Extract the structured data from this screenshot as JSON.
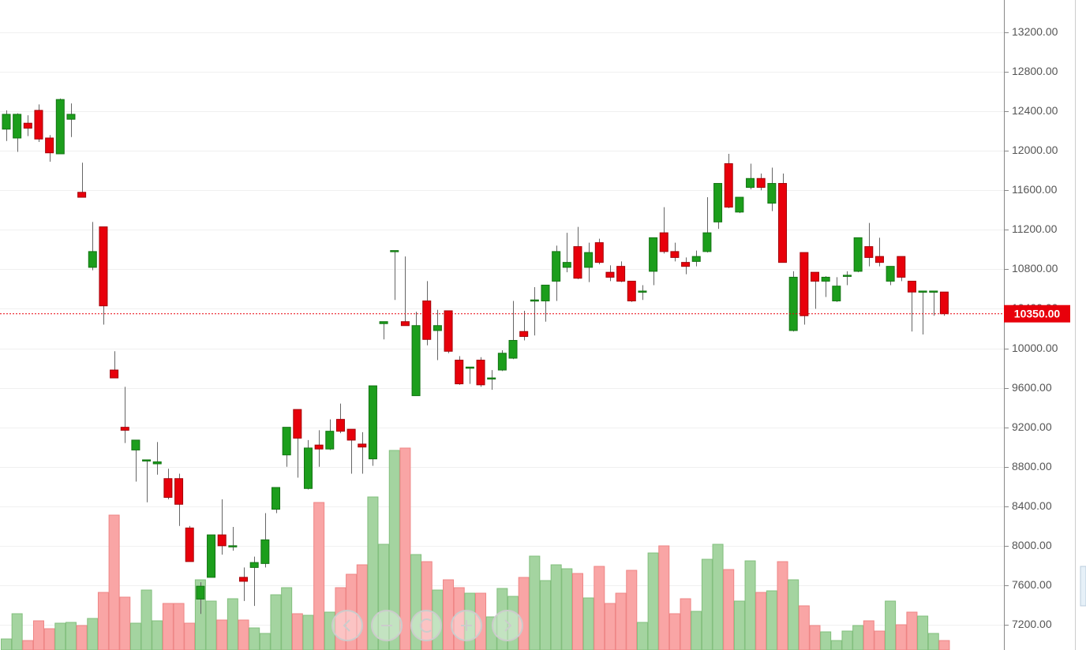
{
  "chart_data": {
    "type": "candlestick",
    "open": [
      12220,
      12130,
      12280,
      12410,
      12130,
      11970,
      12320,
      11580,
      10820,
      11230,
      9780,
      9200,
      8970,
      8860,
      8830,
      8680,
      8680,
      8180,
      7460,
      7680,
      8110,
      7990,
      7680,
      7780,
      7820,
      8370,
      8920,
      9380,
      8580,
      9020,
      8980,
      9280,
      9180,
      9030,
      8880,
      10250,
      10980,
      10270,
      9520,
      10480,
      10180,
      10380,
      9880,
      9800,
      9880,
      9690,
      9780,
      9900,
      10170,
      10480,
      10480,
      10680,
      10820,
      11030,
      10820,
      11070,
      10770,
      10830,
      10680,
      10570,
      10780,
      11170,
      10980,
      10870,
      10880,
      10980,
      11280,
      11870,
      11380,
      11630,
      11720,
      11470,
      11670,
      10180,
      10970,
      10770,
      10680,
      10480,
      10730,
      10780,
      11030,
      10930,
      10680,
      10930,
      10680,
      10570,
      10570,
      10570
    ],
    "high": [
      12410,
      12380,
      12360,
      12470,
      12160,
      12530,
      12480,
      11880,
      11280,
      11230,
      9970,
      9610,
      9070,
      8870,
      9050,
      8780,
      8730,
      8200,
      7630,
      8110,
      8470,
      8190,
      7780,
      7890,
      8330,
      8590,
      9200,
      9380,
      9070,
      9170,
      9280,
      9440,
      9180,
      9150,
      9620,
      10270,
      10990,
      10930,
      10370,
      10680,
      10390,
      10380,
      9920,
      9810,
      9910,
      9780,
      9980,
      10480,
      10380,
      10620,
      10640,
      11040,
      11170,
      11230,
      11070,
      11110,
      10840,
      10880,
      10680,
      10640,
      11120,
      11430,
      11070,
      10920,
      10990,
      11530,
      11670,
      11970,
      11530,
      11870,
      11770,
      11830,
      11770,
      10780,
      10970,
      10770,
      10730,
      10720,
      10780,
      11120,
      11270,
      11120,
      10830,
      10930,
      10680,
      10580,
      10580,
      10570
    ],
    "low": [
      12100,
      11990,
      12150,
      12090,
      11890,
      11970,
      12140,
      11530,
      10790,
      10240,
      9700,
      9040,
      8650,
      8440,
      8720,
      8470,
      8200,
      7840,
      7310,
      7680,
      7910,
      7950,
      7440,
      7390,
      7780,
      8330,
      8800,
      8690,
      8570,
      8800,
      8970,
      9140,
      8730,
      8730,
      8810,
      10090,
      10490,
      10230,
      9520,
      10030,
      9880,
      9950,
      9630,
      9640,
      9610,
      9580,
      9770,
      9890,
      10080,
      10130,
      10270,
      10480,
      10770,
      10700,
      10670,
      10850,
      10680,
      10670,
      10470,
      10490,
      10640,
      10960,
      10880,
      10750,
      10830,
      10970,
      11210,
      11420,
      11370,
      11610,
      11600,
      11390,
      10870,
      10170,
      10240,
      10400,
      10520,
      10470,
      10640,
      10770,
      10830,
      10830,
      10640,
      10680,
      10170,
      10140,
      10330,
      10330
    ],
    "close": [
      12370,
      12370,
      12230,
      12120,
      11980,
      12520,
      12370,
      11530,
      10980,
      10430,
      9700,
      9170,
      9070,
      8870,
      8850,
      8490,
      8420,
      7840,
      7590,
      8110,
      8000,
      8000,
      7640,
      7830,
      8060,
      8590,
      9200,
      9090,
      8990,
      8980,
      9160,
      9160,
      9070,
      9000,
      9620,
      10270,
      10990,
      10230,
      10230,
      10090,
      10230,
      9970,
      9640,
      9810,
      9630,
      9700,
      9950,
      10080,
      10120,
      10490,
      10640,
      10980,
      10870,
      10710,
      10970,
      10870,
      10720,
      10680,
      10480,
      10580,
      11120,
      10980,
      10920,
      10830,
      10930,
      11170,
      11670,
      11430,
      11530,
      11720,
      11630,
      11670,
      10870,
      10720,
      10330,
      10680,
      10720,
      10630,
      10740,
      11120,
      10920,
      10870,
      10830,
      10720,
      10570,
      10580,
      10580,
      10350
    ],
    "volume": [
      14,
      46,
      12,
      37,
      27,
      34,
      35,
      31,
      40,
      73,
      171,
      67,
      34,
      76,
      37,
      59,
      59,
      34,
      89,
      62,
      38,
      65,
      38,
      28,
      21,
      70,
      79,
      46,
      44,
      187,
      48,
      79,
      96,
      108,
      194,
      134,
      253,
      256,
      121,
      112,
      76,
      89,
      79,
      72,
      72,
      42,
      78,
      68,
      92,
      119,
      88,
      108,
      103,
      97,
      66,
      106,
      59,
      72,
      101,
      35,
      123,
      132,
      46,
      65,
      49,
      115,
      134,
      102,
      62,
      113,
      73,
      75,
      112,
      89,
      56,
      31,
      23,
      12,
      24,
      31,
      37,
      24,
      62,
      32,
      48,
      43,
      21,
      12
    ],
    "ylim": [
      6944,
      13528
    ],
    "yticks": [
      {
        "value": 7200,
        "label": "7200.00"
      },
      {
        "value": 7600,
        "label": "7600.00"
      },
      {
        "value": 8000,
        "label": "8000.00"
      },
      {
        "value": 8400,
        "label": "8400.00"
      },
      {
        "value": 8800,
        "label": "8800.00"
      },
      {
        "value": 9200,
        "label": "9200.00"
      },
      {
        "value": 9600,
        "label": "9600.00"
      },
      {
        "value": 10000,
        "label": "10000.00"
      },
      {
        "value": 10400,
        "label": "10400.00"
      },
      {
        "value": 10800,
        "label": "10800.00"
      },
      {
        "value": 11200,
        "label": "11200.00"
      },
      {
        "value": 11600,
        "label": "11600.00"
      },
      {
        "value": 12000,
        "label": "12000.00"
      },
      {
        "value": 12400,
        "label": "12400.00"
      },
      {
        "value": 12800,
        "label": "12800.00"
      },
      {
        "value": 13200,
        "label": "13200.00"
      }
    ],
    "y2lim": [
      0,
      824
    ],
    "up_color": "#1c9e1c",
    "down_color": "#e8000b",
    "up_volume_color": "#a4d4a0",
    "down_volume_color": "#f9a5a5",
    "last_price": {
      "value": 10350,
      "label": "10350.00"
    },
    "grid": true
  }
}
